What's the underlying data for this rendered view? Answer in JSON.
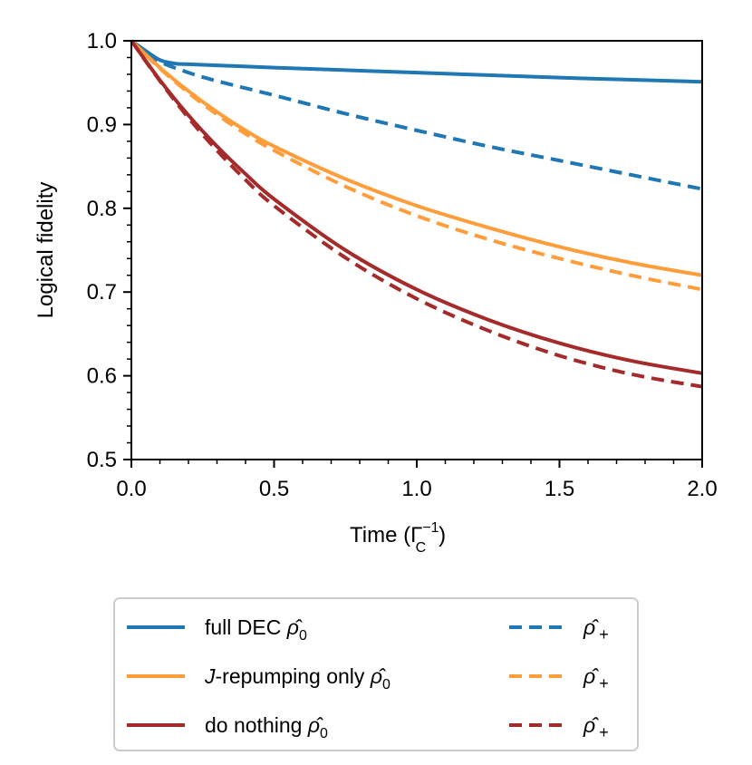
{
  "chart_data": {
    "type": "line",
    "xlabel": "Time (Γ",
    "xlabel_sub": "C",
    "xlabel_sup": "−1",
    "xlabel_close": ")",
    "ylabel": "Logical fidelity",
    "xlim": [
      0.0,
      2.0
    ],
    "ylim": [
      0.5,
      1.0
    ],
    "xticks": [
      0.0,
      0.5,
      1.0,
      1.5,
      2.0
    ],
    "xtick_labels": [
      "0.0",
      "0.5",
      "1.0",
      "1.5",
      "2.0"
    ],
    "yticks": [
      0.5,
      0.6,
      0.7,
      0.8,
      0.9,
      1.0
    ],
    "ytick_labels": [
      "0.5",
      "0.6",
      "0.7",
      "0.8",
      "0.9",
      "1.0"
    ],
    "grid": false,
    "legend_position": "below",
    "series": [
      {
        "name": "full DEC",
        "state": "ρ̂₀",
        "legend_label": "full DEC ρ̂0",
        "color": "#1f77b4",
        "dash": "solid",
        "x": [
          0.0,
          0.05,
          0.1,
          0.15,
          0.2,
          0.5,
          1.0,
          1.5,
          2.0
        ],
        "y": [
          1.0,
          0.988,
          0.977,
          0.973,
          0.972,
          0.968,
          0.962,
          0.956,
          0.951
        ]
      },
      {
        "name": "full DEC",
        "state": "ρ̂₊",
        "legend_label": "ρ̂+",
        "color": "#1f77b4",
        "dash": "dashed",
        "x": [
          0.0,
          0.05,
          0.1,
          0.2,
          0.3,
          0.5,
          0.75,
          1.0,
          1.25,
          1.5,
          1.75,
          2.0
        ],
        "y": [
          1.0,
          0.987,
          0.975,
          0.962,
          0.952,
          0.935,
          0.913,
          0.893,
          0.874,
          0.857,
          0.84,
          0.823
        ]
      },
      {
        "name": "J-repumping only",
        "state": "ρ̂₀",
        "legend_label": "J-repumping only ρ̂0",
        "color": "#ff9d3b",
        "dash": "solid",
        "x": [
          0.0,
          0.1,
          0.2,
          0.3,
          0.4,
          0.5,
          0.75,
          1.0,
          1.25,
          1.5,
          1.75,
          2.0
        ],
        "y": [
          1.0,
          0.968,
          0.94,
          0.915,
          0.893,
          0.874,
          0.835,
          0.803,
          0.777,
          0.754,
          0.735,
          0.72
        ]
      },
      {
        "name": "J-repumping only",
        "state": "ρ̂₊",
        "legend_label": "ρ̂+",
        "color": "#ff9d3b",
        "dash": "dashed",
        "x": [
          0.0,
          0.1,
          0.2,
          0.3,
          0.4,
          0.5,
          0.75,
          1.0,
          1.25,
          1.5,
          1.75,
          2.0
        ],
        "y": [
          1.0,
          0.967,
          0.938,
          0.912,
          0.889,
          0.869,
          0.826,
          0.791,
          0.763,
          0.74,
          0.72,
          0.703
        ]
      },
      {
        "name": "do nothing",
        "state": "ρ̂₀",
        "legend_label": "do nothing ρ̂0",
        "color": "#a52a2a",
        "dash": "solid",
        "x": [
          0.0,
          0.1,
          0.2,
          0.3,
          0.4,
          0.5,
          0.75,
          1.0,
          1.25,
          1.5,
          1.75,
          2.0
        ],
        "y": [
          1.0,
          0.953,
          0.911,
          0.874,
          0.841,
          0.811,
          0.75,
          0.703,
          0.667,
          0.639,
          0.618,
          0.603
        ]
      },
      {
        "name": "do nothing",
        "state": "ρ̂₊",
        "legend_label": "ρ̂+",
        "color": "#a52a2a",
        "dash": "dashed",
        "x": [
          0.0,
          0.1,
          0.2,
          0.3,
          0.4,
          0.5,
          0.75,
          1.0,
          1.25,
          1.5,
          1.75,
          2.0
        ],
        "y": [
          1.0,
          0.952,
          0.908,
          0.869,
          0.834,
          0.803,
          0.741,
          0.692,
          0.654,
          0.624,
          0.602,
          0.587
        ]
      }
    ]
  },
  "legend": {
    "left": [
      {
        "text": "full DEC ",
        "sym": "ρ̂",
        "sub": "0"
      },
      {
        "text": "-repumping only ",
        "italic_prefix": "J",
        "sym": "ρ̂",
        "sub": "0"
      },
      {
        "text": "do nothing ",
        "sym": "ρ̂",
        "sub": "0"
      }
    ],
    "right": [
      {
        "sym": "ρ̂",
        "sub": "+"
      },
      {
        "sym": "ρ̂",
        "sub": "+"
      },
      {
        "sym": "ρ̂",
        "sub": "+"
      }
    ]
  }
}
